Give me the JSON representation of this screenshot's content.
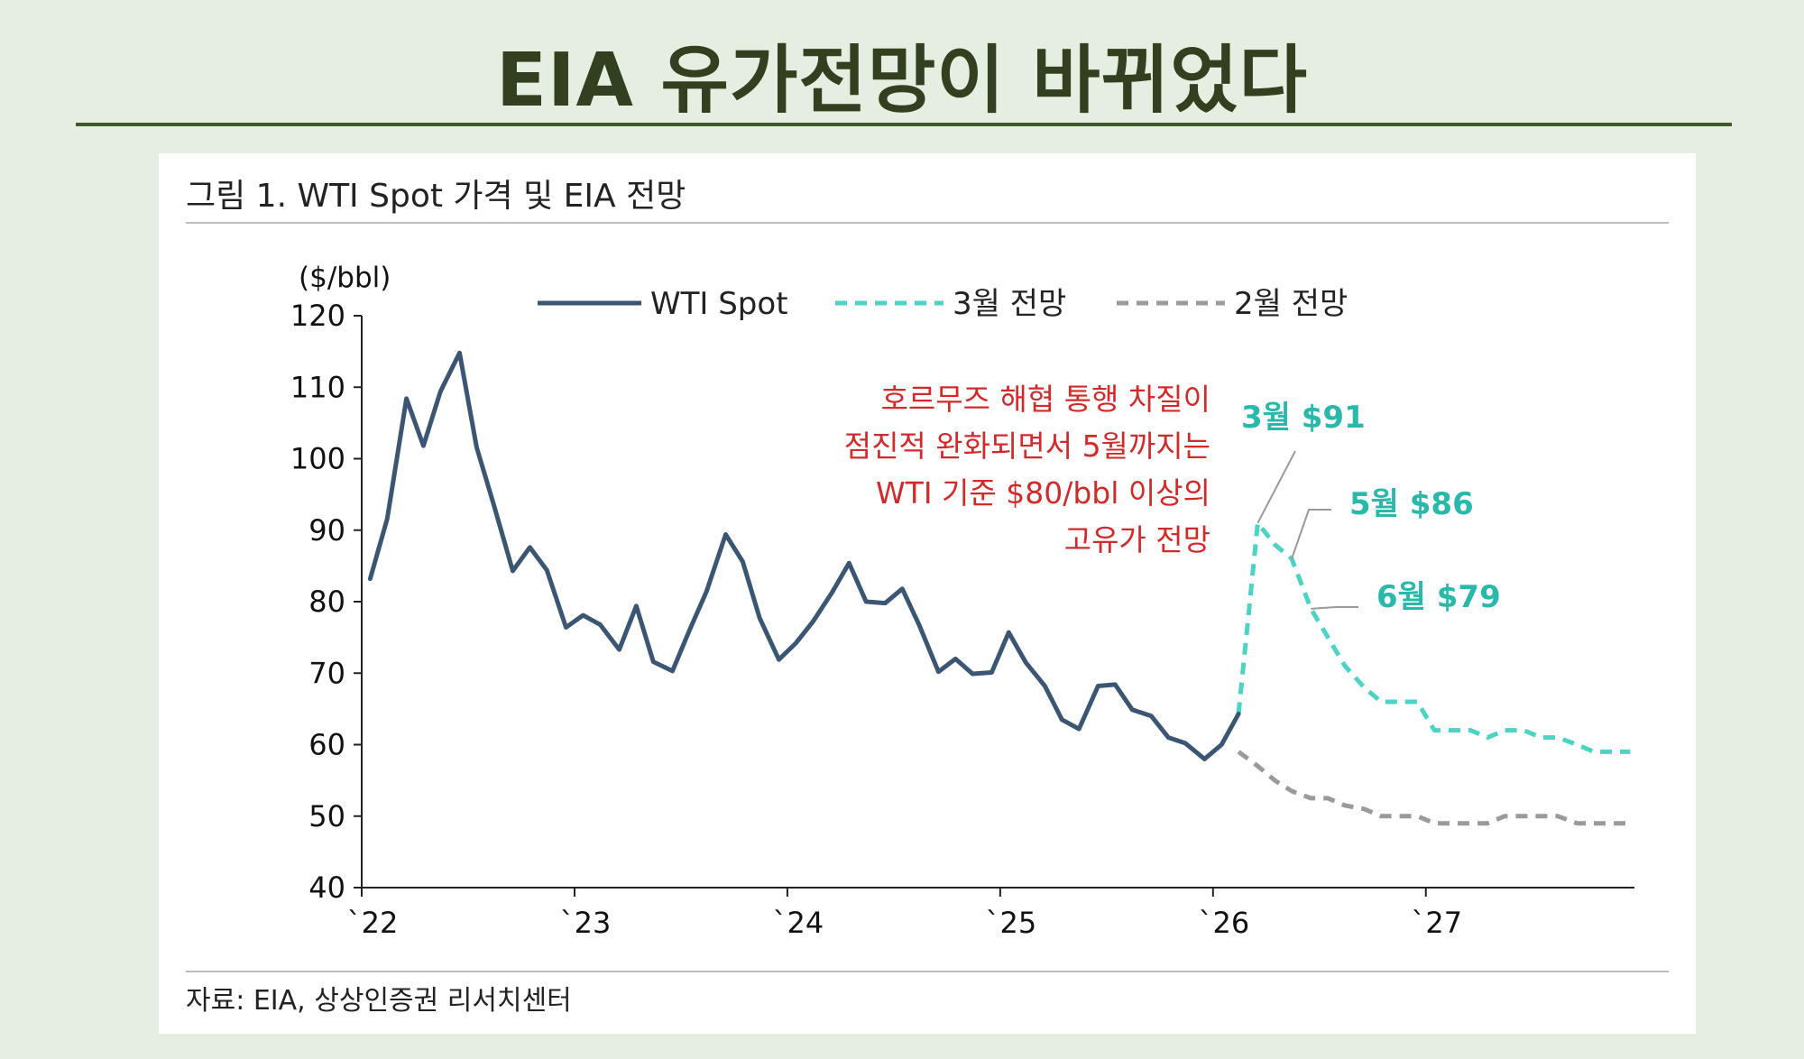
{
  "slide_title": "EIA 유가전망이 바뀌었다",
  "figure_title": "그림 1. WTI Spot 가격 및 EIA 전망",
  "source": "자료: EIA, 상상인증권 리서치센터",
  "colors": {
    "spot": "#3b5673",
    "march": "#4cd3c4",
    "feb": "#9a9a9a",
    "annotation": "#d12a2a",
    "teal_label": "#29b8aa"
  },
  "chart_data": {
    "type": "line",
    "unit": "($/bbl)",
    "ylim": [
      40,
      120
    ],
    "yticks": [
      40,
      50,
      60,
      70,
      80,
      90,
      100,
      110,
      120
    ],
    "xlim": [
      2022.0,
      2027.98
    ],
    "xticks": [
      {
        "x": 2022,
        "label": "`22"
      },
      {
        "x": 2023,
        "label": "`23"
      },
      {
        "x": 2024,
        "label": "`24"
      },
      {
        "x": 2025,
        "label": "`25"
      },
      {
        "x": 2026,
        "label": "`26"
      },
      {
        "x": 2027,
        "label": "`27"
      }
    ],
    "legend": [
      "WTI Spot",
      "3월 전망",
      "2월 전망"
    ],
    "series": [
      {
        "name": "WTI Spot",
        "style": "solid",
        "color": "#3b5673",
        "x": [
          2022.04,
          2022.12,
          2022.21,
          2022.29,
          2022.37,
          2022.46,
          2022.54,
          2022.62,
          2022.71,
          2022.79,
          2022.87,
          2022.96,
          2023.04,
          2023.12,
          2023.21,
          2023.29,
          2023.37,
          2023.46,
          2023.54,
          2023.62,
          2023.71,
          2023.79,
          2023.87,
          2023.96,
          2024.04,
          2024.12,
          2024.21,
          2024.29,
          2024.37,
          2024.46,
          2024.54,
          2024.62,
          2024.71,
          2024.79,
          2024.87,
          2024.96,
          2025.04,
          2025.12,
          2025.21,
          2025.29,
          2025.37,
          2025.46,
          2025.54,
          2025.62,
          2025.71,
          2025.79,
          2025.87,
          2025.96,
          2026.04,
          2026.12
        ],
        "values": [
          83.2,
          91.6,
          108.4,
          101.8,
          109.4,
          114.8,
          101.6,
          93.6,
          84.3,
          87.6,
          84.4,
          76.4,
          78.1,
          76.8,
          73.3,
          79.4,
          71.6,
          70.3,
          76.0,
          81.4,
          89.4,
          85.6,
          77.7,
          71.9,
          74.2,
          77.2,
          81.3,
          85.4,
          80.0,
          79.8,
          81.8,
          76.7,
          70.2,
          72.0,
          69.9,
          70.1,
          75.7,
          71.5,
          68.2,
          63.5,
          62.2,
          68.2,
          68.4,
          64.9,
          64.0,
          61.0,
          60.2,
          58.0,
          60.0,
          64.3
        ]
      },
      {
        "name": "3월 전망",
        "style": "dashed",
        "color": "#4cd3c4",
        "x": [
          2026.12,
          2026.21,
          2026.29,
          2026.37,
          2026.46,
          2026.54,
          2026.62,
          2026.71,
          2026.79,
          2026.87,
          2026.96,
          2027.04,
          2027.12,
          2027.21,
          2027.29,
          2027.37,
          2027.46,
          2027.54,
          2027.62,
          2027.71,
          2027.79,
          2027.87,
          2027.96
        ],
        "values": [
          64.3,
          91,
          88,
          86,
          79,
          75,
          71,
          68,
          66,
          66,
          66,
          62,
          62,
          62,
          61,
          62,
          62,
          61,
          61,
          60,
          59,
          59,
          59
        ]
      },
      {
        "name": "2월 전망",
        "style": "dashed",
        "color": "#9a9a9a",
        "x": [
          2026.12,
          2026.21,
          2026.29,
          2026.37,
          2026.46,
          2026.54,
          2026.62,
          2026.71,
          2026.79,
          2026.87,
          2026.96,
          2027.04,
          2027.12,
          2027.21,
          2027.29,
          2027.37,
          2027.46,
          2027.54,
          2027.62,
          2027.71,
          2027.79,
          2027.87,
          2027.96
        ],
        "values": [
          59,
          57,
          55,
          53.5,
          52.5,
          52.5,
          51.5,
          51,
          50,
          50,
          50,
          49,
          49,
          49,
          49,
          50,
          50,
          50,
          50,
          49,
          49,
          49,
          49
        ]
      }
    ],
    "annotations": {
      "red_text": [
        "호르무즈 해협 통행 차질이",
        "점진적 완화되면서 5월까지는",
        "WTI 기준 $80/bbl 이상의",
        "고유가 전망"
      ],
      "labels": [
        {
          "text": "3월 $91",
          "x": 2026.21,
          "y": 91
        },
        {
          "text": "5월 $86",
          "x": 2026.37,
          "y": 86
        },
        {
          "text": "6월 $79",
          "x": 2026.46,
          "y": 79
        }
      ]
    }
  }
}
